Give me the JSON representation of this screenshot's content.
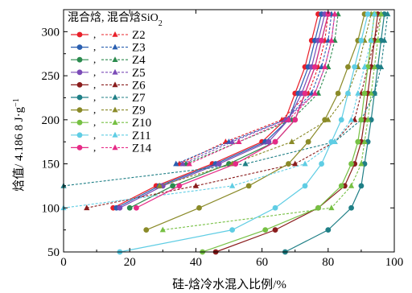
{
  "chart_data": {
    "type": "line",
    "xlabel": "硅-焓冷水混入比例/%",
    "ylabel": "焓值/    4.186 8 J·g",
    "ylabel_sup": "−1",
    "xlim": [
      0,
      100
    ],
    "ylim": [
      50,
      325
    ],
    "xticks": [
      "0",
      "20",
      "40",
      "60",
      "80",
      "100"
    ],
    "yticks": [
      "50",
      "100",
      "150",
      "200",
      "250",
      "300"
    ],
    "legend": {
      "header_main": "混合焓, 混合焓SiO",
      "header_sub": "2",
      "placement": "top-left"
    },
    "series": [
      {
        "name": "Z2",
        "color": "#e8202a",
        "solid": [
          [
            15,
            100
          ],
          [
            28,
            125
          ],
          [
            45,
            150
          ],
          [
            60,
            175
          ],
          [
            67,
            200
          ],
          [
            70,
            230
          ],
          [
            73,
            260
          ],
          [
            75,
            290
          ],
          [
            77,
            320
          ]
        ],
        "dashed": [
          [
            35,
            150
          ],
          [
            49,
            175
          ],
          [
            66,
            200
          ],
          [
            74,
            230
          ],
          [
            77,
            260
          ],
          [
            79,
            290
          ],
          [
            80,
            320
          ]
        ]
      },
      {
        "name": "Z3",
        "color": "#2a5fb0",
        "solid": [
          [
            16,
            100
          ],
          [
            29,
            125
          ],
          [
            46,
            150
          ],
          [
            61,
            175
          ],
          [
            68,
            200
          ],
          [
            71,
            230
          ],
          [
            74,
            260
          ],
          [
            76,
            290
          ],
          [
            78,
            320
          ]
        ],
        "dashed": [
          [
            34,
            150
          ],
          [
            50,
            175
          ],
          [
            67,
            200
          ],
          [
            75,
            230
          ],
          [
            78,
            260
          ],
          [
            80,
            290
          ],
          [
            81,
            320
          ]
        ]
      },
      {
        "name": "Z4",
        "color": "#2b8a4e",
        "solid": [
          [
            20,
            100
          ],
          [
            33,
            125
          ],
          [
            50,
            150
          ],
          [
            64,
            175
          ],
          [
            70,
            200
          ],
          [
            73,
            230
          ],
          [
            76,
            260
          ],
          [
            78,
            290
          ],
          [
            80,
            320
          ]
        ],
        "dashed": [
          [
            37,
            150
          ],
          [
            53,
            175
          ],
          [
            69,
            200
          ],
          [
            77,
            230
          ],
          [
            80,
            260
          ],
          [
            82,
            290
          ],
          [
            83,
            320
          ]
        ]
      },
      {
        "name": "Z5",
        "color": "#7b4bb7",
        "solid": [
          [
            17,
            100
          ],
          [
            30,
            125
          ],
          [
            47,
            150
          ],
          [
            62,
            175
          ],
          [
            68,
            200
          ],
          [
            72,
            230
          ],
          [
            75,
            260
          ],
          [
            77,
            290
          ],
          [
            79,
            320
          ]
        ],
        "dashed": [
          [
            36,
            150
          ],
          [
            51,
            175
          ],
          [
            67,
            200
          ],
          [
            76,
            230
          ],
          [
            79,
            260
          ],
          [
            81,
            290
          ],
          [
            82,
            320
          ]
        ]
      },
      {
        "name": "Z6",
        "color": "#8a1c1c",
        "solid": [
          [
            46,
            50
          ],
          [
            64,
            75
          ],
          [
            77,
            100
          ],
          [
            85,
            125
          ],
          [
            88,
            150
          ],
          [
            90,
            175
          ],
          [
            91,
            200
          ],
          [
            92,
            230
          ],
          [
            93,
            260
          ],
          [
            94,
            290
          ],
          [
            95,
            320
          ]
        ],
        "dashed": [
          [
            7,
            100
          ],
          [
            40,
            125
          ],
          [
            70,
            150
          ],
          [
            82,
            175
          ],
          [
            88,
            200
          ],
          [
            90,
            230
          ],
          [
            92,
            260
          ],
          [
            94,
            290
          ],
          [
            96,
            320
          ]
        ]
      },
      {
        "name": "Z7",
        "color": "#1f7f86",
        "solid": [
          [
            67,
            50
          ],
          [
            80,
            75
          ],
          [
            87,
            100
          ],
          [
            90,
            125
          ],
          [
            91,
            150
          ],
          [
            92,
            175
          ],
          [
            93,
            200
          ],
          [
            94,
            230
          ],
          [
            95,
            260
          ],
          [
            96,
            290
          ],
          [
            97,
            320
          ]
        ],
        "dashed": [
          [
            0,
            125
          ],
          [
            55,
            150
          ],
          [
            82,
            175
          ],
          [
            90,
            200
          ],
          [
            94,
            230
          ],
          [
            96,
            260
          ],
          [
            97,
            290
          ],
          [
            98,
            320
          ]
        ]
      },
      {
        "name": "Z9",
        "color": "#8a8a28",
        "solid": [
          [
            25,
            75
          ],
          [
            41,
            100
          ],
          [
            56,
            125
          ],
          [
            68,
            150
          ],
          [
            74,
            175
          ],
          [
            79,
            200
          ],
          [
            83,
            230
          ],
          [
            86,
            260
          ],
          [
            89,
            290
          ],
          [
            91,
            320
          ]
        ],
        "dashed": [
          [
            29,
            125
          ],
          [
            51,
            150
          ],
          [
            69,
            175
          ],
          [
            80,
            200
          ],
          [
            86,
            230
          ],
          [
            89,
            260
          ],
          [
            91,
            290
          ],
          [
            93,
            320
          ]
        ]
      },
      {
        "name": "Z10",
        "color": "#76c043",
        "solid": [
          [
            42,
            50
          ],
          [
            61,
            75
          ],
          [
            77,
            100
          ],
          [
            84,
            125
          ],
          [
            87,
            150
          ],
          [
            89,
            175
          ],
          [
            90,
            200
          ],
          [
            91,
            230
          ],
          [
            92,
            260
          ],
          [
            93,
            290
          ],
          [
            94,
            320
          ]
        ],
        "dashed": [
          [
            30,
            75
          ],
          [
            81,
            100
          ],
          [
            87,
            125
          ],
          [
            90,
            150
          ],
          [
            91,
            175
          ],
          [
            92,
            200
          ],
          [
            93,
            230
          ],
          [
            94,
            260
          ],
          [
            95,
            290
          ],
          [
            96,
            320
          ]
        ]
      },
      {
        "name": "Z11",
        "color": "#5fcde4",
        "solid": [
          [
            17,
            50
          ],
          [
            51,
            75
          ],
          [
            64,
            100
          ],
          [
            73,
            125
          ],
          [
            78,
            150
          ],
          [
            81,
            175
          ],
          [
            84,
            200
          ],
          [
            86,
            230
          ],
          [
            88,
            260
          ],
          [
            90,
            290
          ],
          [
            92,
            320
          ]
        ],
        "dashed": [
          [
            0,
            100
          ],
          [
            51,
            125
          ],
          [
            73,
            150
          ],
          [
            82,
            175
          ],
          [
            87,
            200
          ],
          [
            89,
            230
          ],
          [
            91,
            260
          ],
          [
            93,
            290
          ],
          [
            94,
            320
          ]
        ]
      },
      {
        "name": "Z14",
        "color": "#e62a86",
        "solid": [
          [
            22,
            100
          ],
          [
            35,
            125
          ],
          [
            52,
            150
          ],
          [
            64,
            175
          ],
          [
            70,
            200
          ],
          [
            73,
            230
          ],
          [
            76,
            260
          ],
          [
            78,
            290
          ],
          [
            80,
            320
          ]
        ],
        "dashed": [
          [
            38,
            150
          ],
          [
            53,
            175
          ],
          [
            68,
            200
          ],
          [
            76,
            230
          ],
          [
            79,
            260
          ],
          [
            81,
            290
          ],
          [
            82,
            320
          ]
        ]
      }
    ]
  }
}
